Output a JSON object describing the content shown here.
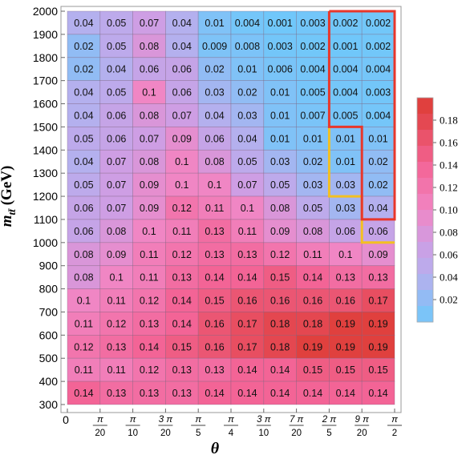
{
  "chart_data": {
    "type": "heatmap",
    "xlabel": "θ",
    "ylabel": "m",
    "ylabel_sub": "tt̄",
    "ylabel_unit": "(GeV)",
    "x_tick_labels": [
      {
        "text": "0"
      },
      {
        "num": "π",
        "den": "20"
      },
      {
        "num": "π",
        "den": "10"
      },
      {
        "num": "3 π",
        "den": "20"
      },
      {
        "num": "π",
        "den": "5"
      },
      {
        "num": "π",
        "den": "4"
      },
      {
        "num": "3 π",
        "den": "10"
      },
      {
        "num": "7 π",
        "den": "20"
      },
      {
        "num": "2 π",
        "den": "5"
      },
      {
        "num": "9 π",
        "den": "20"
      },
      {
        "num": "π",
        "den": "2"
      }
    ],
    "y_ticks": [
      300,
      400,
      500,
      600,
      700,
      800,
      900,
      1000,
      1100,
      1200,
      1300,
      1400,
      1500,
      1600,
      1700,
      1800,
      1900,
      2000
    ],
    "colorbar_ticks": [
      "0.02",
      "0.04",
      "0.06",
      "0.08",
      "0.10",
      "0.12",
      "0.14",
      "0.16",
      "0.18"
    ],
    "rows": [
      {
        "m": 2000,
        "values": [
          "0.04",
          "0.05",
          "0.07",
          "0.04",
          "0.01",
          "0.004",
          "0.001",
          "0.003",
          "0.002",
          "0.002"
        ]
      },
      {
        "m": 1900,
        "values": [
          "0.02",
          "0.05",
          "0.08",
          "0.04",
          "0.009",
          "0.008",
          "0.003",
          "0.002",
          "0.001",
          "0.002"
        ]
      },
      {
        "m": 1800,
        "values": [
          "0.02",
          "0.04",
          "0.06",
          "0.06",
          "0.02",
          "0.01",
          "0.006",
          "0.004",
          "0.004",
          "0.004"
        ]
      },
      {
        "m": 1700,
        "values": [
          "0.04",
          "0.05",
          "0.1",
          "0.06",
          "0.03",
          "0.02",
          "0.01",
          "0.005",
          "0.004",
          "0.003"
        ]
      },
      {
        "m": 1600,
        "values": [
          "0.04",
          "0.06",
          "0.08",
          "0.07",
          "0.04",
          "0.03",
          "0.01",
          "0.007",
          "0.005",
          "0.004"
        ]
      },
      {
        "m": 1500,
        "values": [
          "0.05",
          "0.06",
          "0.07",
          "0.09",
          "0.06",
          "0.04",
          "0.01",
          "0.01",
          "0.01",
          "0.01"
        ]
      },
      {
        "m": 1400,
        "values": [
          "0.04",
          "0.07",
          "0.08",
          "0.1",
          "0.08",
          "0.05",
          "0.03",
          "0.02",
          "0.01",
          "0.02"
        ]
      },
      {
        "m": 1300,
        "values": [
          "0.05",
          "0.07",
          "0.09",
          "0.1",
          "0.1",
          "0.07",
          "0.05",
          "0.03",
          "0.03",
          "0.02"
        ]
      },
      {
        "m": 1200,
        "values": [
          "0.06",
          "0.07",
          "0.09",
          "0.12",
          "0.11",
          "0.1",
          "0.08",
          "0.05",
          "0.03",
          "0.04"
        ]
      },
      {
        "m": 1100,
        "values": [
          "0.06",
          "0.08",
          "0.1",
          "0.11",
          "0.13",
          "0.11",
          "0.09",
          "0.08",
          "0.06",
          "0.06"
        ]
      },
      {
        "m": 1000,
        "values": [
          "0.08",
          "0.09",
          "0.11",
          "0.12",
          "0.13",
          "0.13",
          "0.12",
          "0.11",
          "0.1",
          "0.09"
        ]
      },
      {
        "m": 900,
        "values": [
          "0.08",
          "0.1",
          "0.11",
          "0.13",
          "0.14",
          "0.14",
          "0.15",
          "0.14",
          "0.13",
          "0.13"
        ]
      },
      {
        "m": 800,
        "values": [
          "0.1",
          "0.11",
          "0.12",
          "0.14",
          "0.15",
          "0.16",
          "0.16",
          "0.16",
          "0.16",
          "0.17"
        ]
      },
      {
        "m": 700,
        "values": [
          "0.11",
          "0.12",
          "0.13",
          "0.14",
          "0.16",
          "0.17",
          "0.18",
          "0.18",
          "0.19",
          "0.19"
        ]
      },
      {
        "m": 600,
        "values": [
          "0.12",
          "0.13",
          "0.14",
          "0.15",
          "0.16",
          "0.17",
          "0.18",
          "0.19",
          "0.19",
          "0.19"
        ]
      },
      {
        "m": 500,
        "values": [
          "0.11",
          "0.11",
          "0.12",
          "0.13",
          "0.13",
          "0.14",
          "0.14",
          "0.15",
          "0.15",
          "0.15"
        ]
      },
      {
        "m": 400,
        "values": [
          "0.14",
          "0.13",
          "0.13",
          "0.13",
          "0.14",
          "0.14",
          "0.14",
          "0.14",
          "0.14",
          "0.14"
        ]
      }
    ],
    "colors": {
      "low": "#6ec8fa",
      "mid": "#c8a6e6",
      "midHigh": "#f486bf",
      "high": "#e0413f",
      "red_outline": "#e8372b",
      "yellow_outline": "#f3c021"
    }
  }
}
